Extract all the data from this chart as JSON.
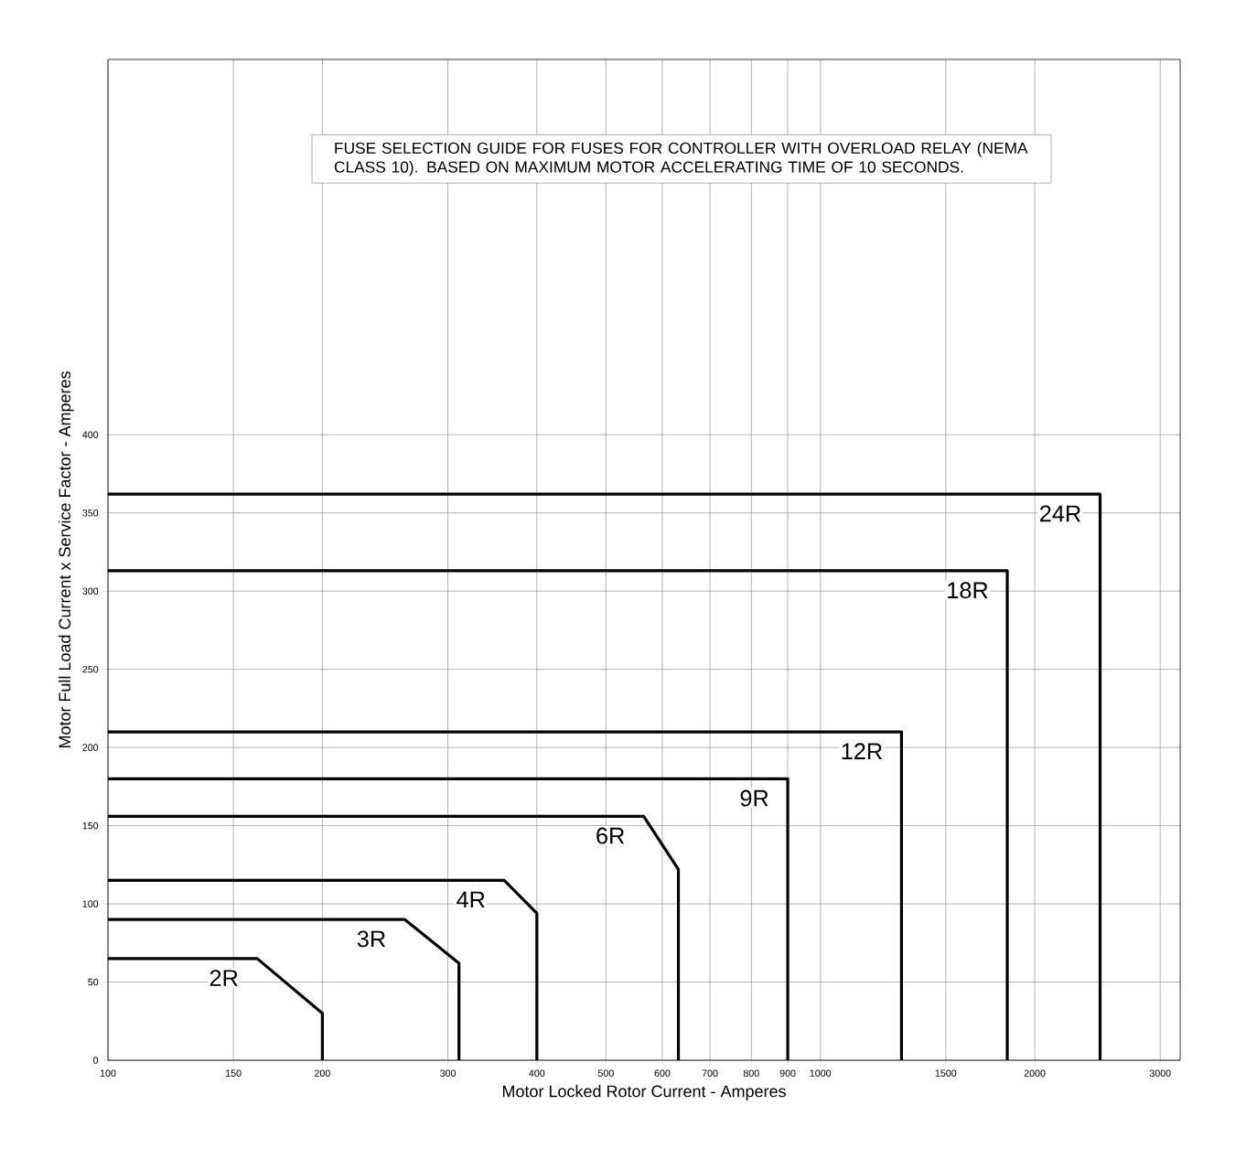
{
  "chart_data": {
    "type": "line",
    "xlabel": "Motor Locked Rotor Current - Amperes",
    "ylabel": "Motor Full Load Current x Service Factor - Amperes",
    "annotations": [
      "FUSE SELECTION GUIDE FOR FUSES FOR CONTROLLER WITH OVERLOAD RELAY (NEMA CLASS 10). BASED ON MAXIMUM MOTOR ACCELERATING TIME OF 10 SECONDS."
    ],
    "log": "x",
    "grid": true,
    "legend": false,
    "marker": "none",
    "line_style": "solid",
    "xlim": [
      100,
      3200
    ],
    "ylim": [
      0,
      640
    ],
    "xticks": [
      100,
      150,
      200,
      300,
      400,
      500,
      600,
      700,
      800,
      900,
      1000,
      1500,
      2000,
      3000
    ],
    "yticks": [
      0,
      50,
      100,
      150,
      200,
      250,
      300,
      350,
      400
    ],
    "series": [
      {
        "name": "2R",
        "color": "#000000",
        "x": [
          100,
          162,
          200,
          200
        ],
        "values": [
          65,
          65,
          30,
          0
        ]
      },
      {
        "name": "3R",
        "color": "#000000",
        "x": [
          100,
          261,
          311,
          311
        ],
        "values": [
          90,
          90,
          62,
          0
        ]
      },
      {
        "name": "4R",
        "color": "#000000",
        "x": [
          100,
          360,
          400,
          400
        ],
        "values": [
          115,
          115,
          94,
          0
        ]
      },
      {
        "name": "6R",
        "color": "#000000",
        "x": [
          100,
          565,
          632,
          632
        ],
        "values": [
          156,
          156,
          122,
          0
        ]
      },
      {
        "name": "9R",
        "color": "#000000",
        "x": [
          100,
          900,
          900
        ],
        "values": [
          180,
          180,
          0
        ]
      },
      {
        "name": "12R",
        "color": "#000000",
        "x": [
          100,
          1300,
          1300
        ],
        "values": [
          210,
          210,
          0
        ]
      },
      {
        "name": "18R",
        "color": "#000000",
        "x": [
          100,
          1830,
          1830
        ],
        "values": [
          313,
          313,
          0
        ]
      },
      {
        "name": "24R",
        "color": "#000000",
        "x": [
          100,
          2470,
          2470
        ],
        "values": [
          362,
          362,
          0
        ]
      }
    ]
  }
}
